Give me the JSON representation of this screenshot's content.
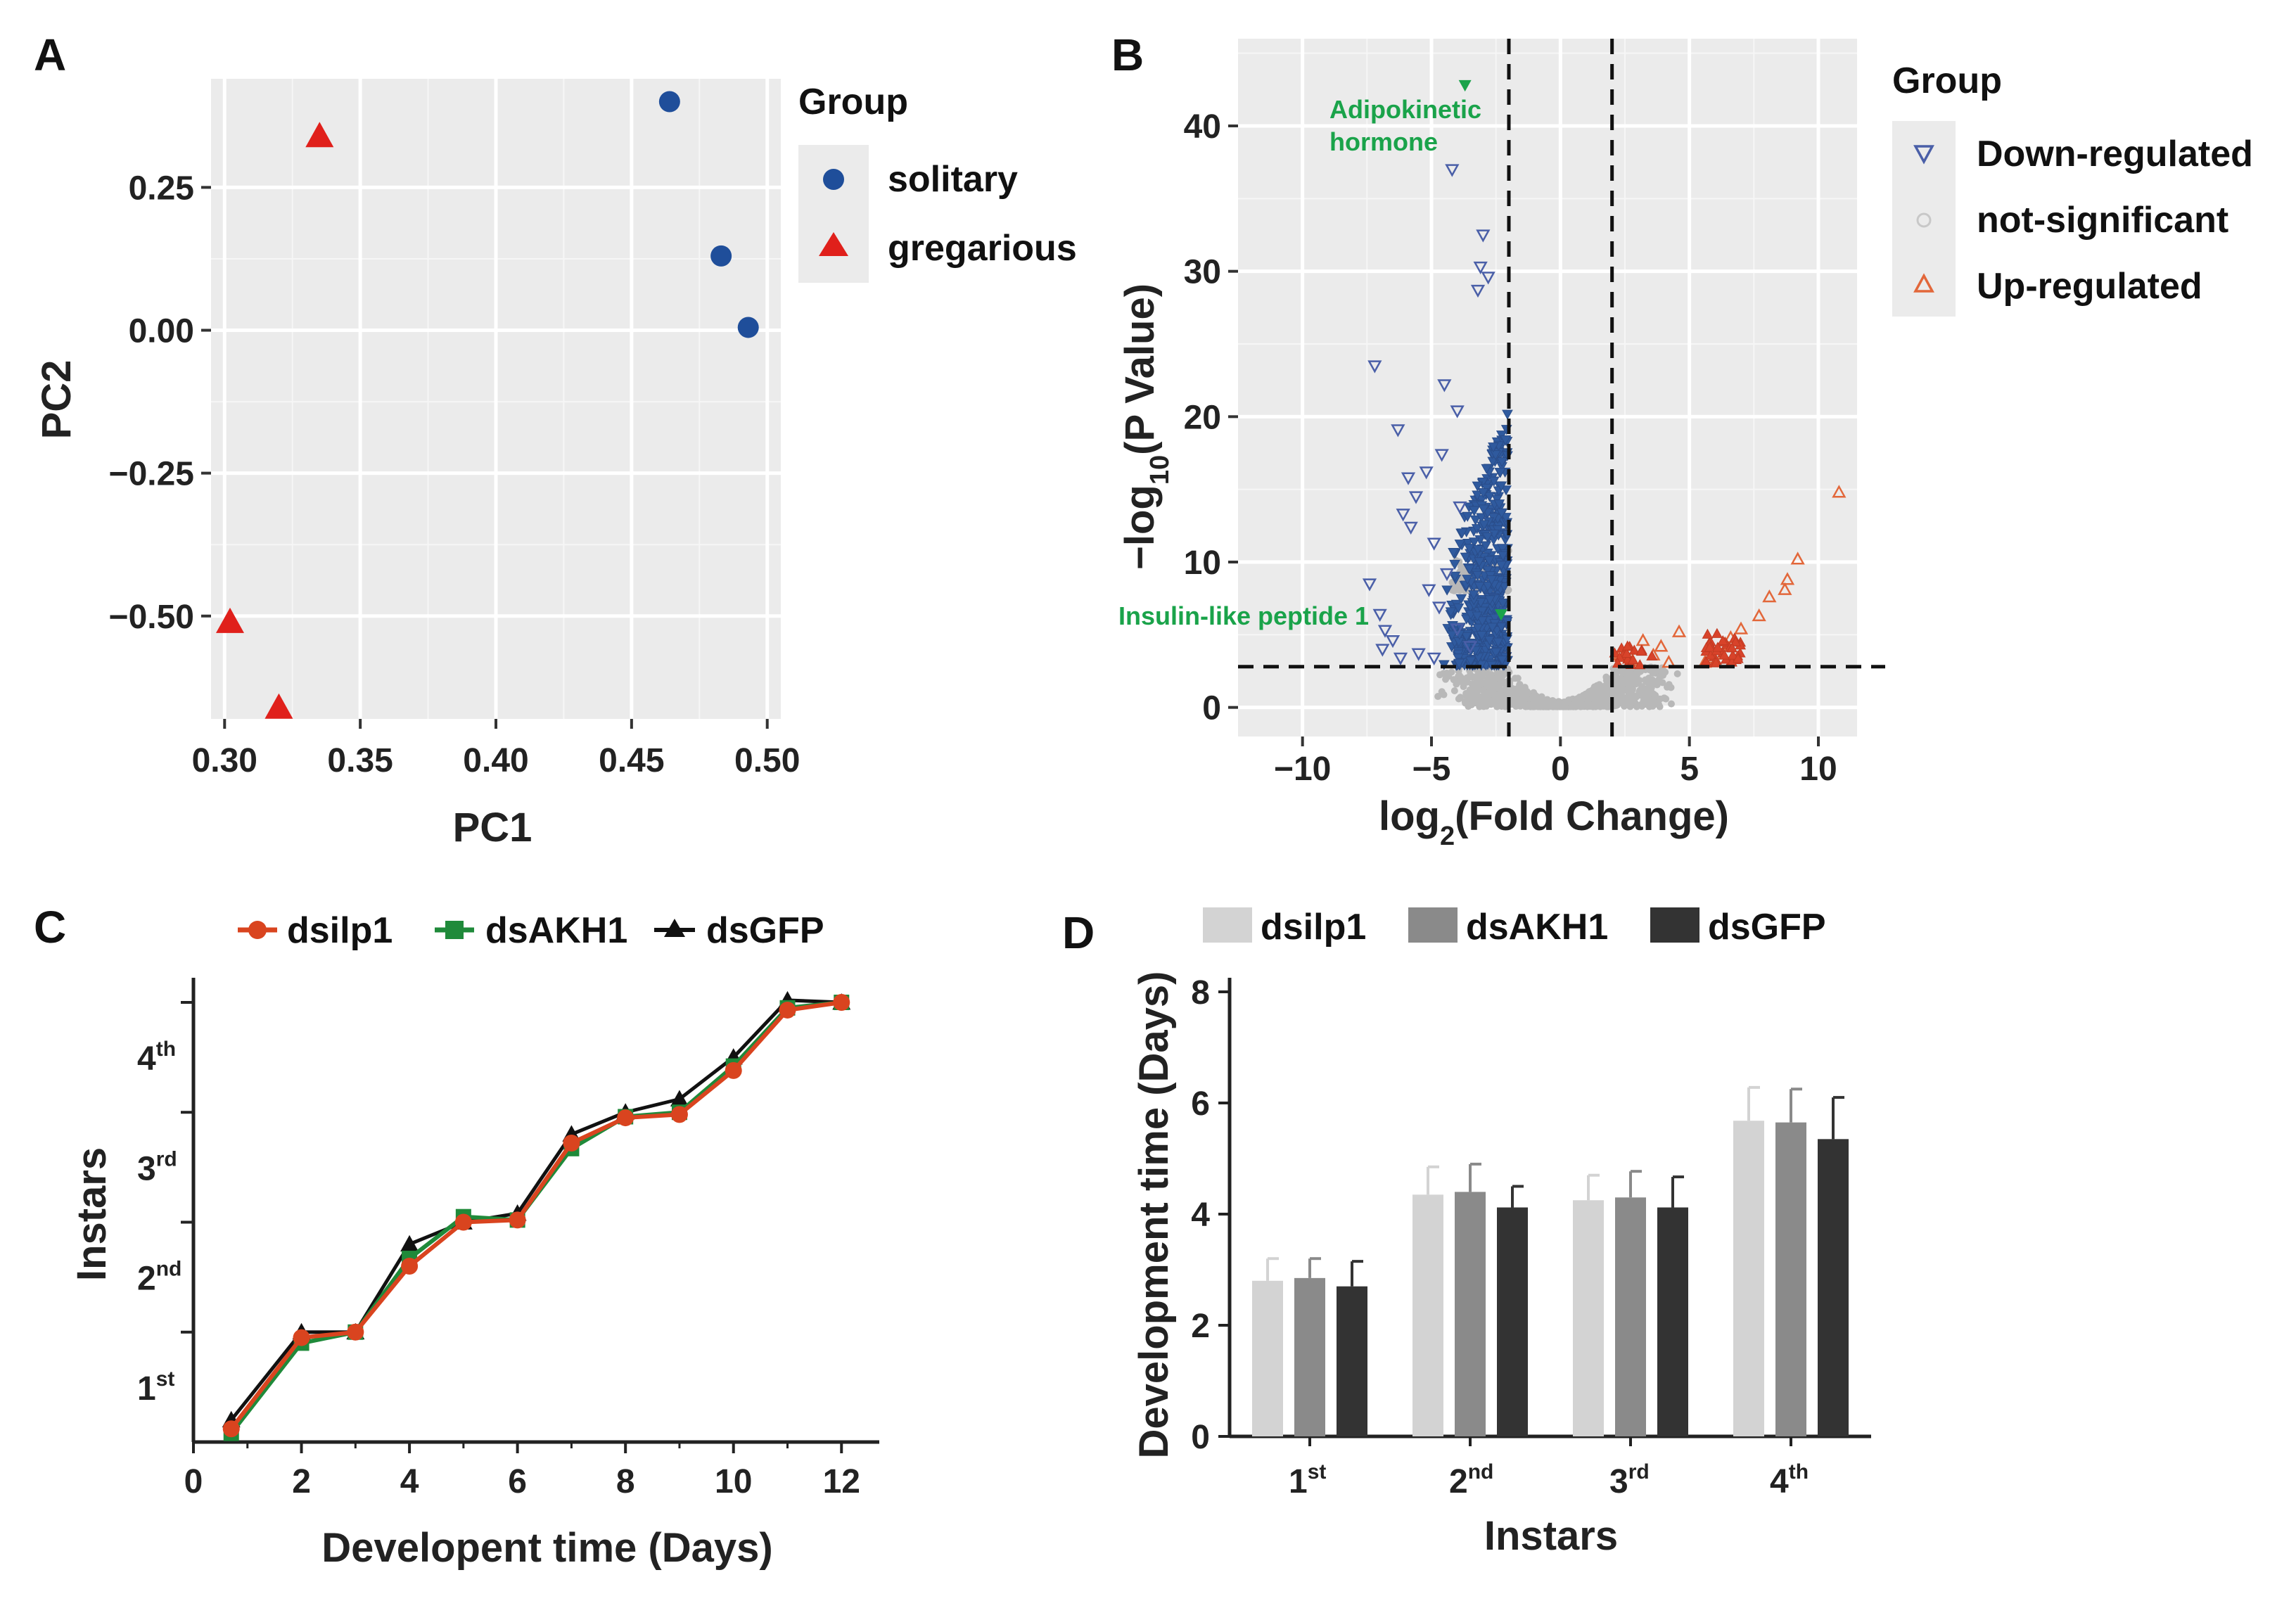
{
  "chart_data": [
    {
      "panel": "A",
      "type": "scatter",
      "xlabel": "PC1",
      "ylabel": "PC2",
      "xlim": [
        0.295,
        0.505
      ],
      "ylim": [
        -0.68,
        0.44
      ],
      "xticks": [
        "0.30",
        "0.35",
        "0.40",
        "0.45",
        "0.50"
      ],
      "xtick_values": [
        0.3,
        0.35,
        0.4,
        0.45,
        0.5
      ],
      "yticks": [
        "0.25",
        "0.00",
        "−0.25",
        "−0.50"
      ],
      "ytick_values": [
        0.25,
        0.0,
        -0.25,
        -0.5
      ],
      "legend_title": "Group",
      "series": [
        {
          "name": "solitary",
          "color": "#1f4e9a",
          "marker": "circle",
          "points": [
            [
              0.464,
              0.4
            ],
            [
              0.483,
              0.13
            ],
            [
              0.493,
              0.005
            ]
          ]
        },
        {
          "name": "gregarious",
          "color": "#e0201b",
          "marker": "triangle",
          "points": [
            [
              0.335,
              0.34
            ],
            [
              0.302,
              -0.51
            ],
            [
              0.32,
              -0.66
            ]
          ]
        }
      ]
    },
    {
      "panel": "B",
      "type": "scatter",
      "xlabel_main": "log",
      "xlabel_sub": "2",
      "xlabel_rest": "(Fold Change)",
      "ylabel_main": "−log",
      "ylabel_sub": "10",
      "ylabel_rest": "(P Value)",
      "xlim": [
        -12.5,
        11.5
      ],
      "ylim": [
        -2,
        46
      ],
      "xticks": [
        "−10",
        "−5",
        "0",
        "5",
        "10"
      ],
      "xtick_values": [
        -10,
        -5,
        0,
        5,
        10
      ],
      "yticks": [
        "0",
        "10",
        "20",
        "30",
        "40"
      ],
      "ytick_values": [
        0,
        10,
        20,
        30,
        40
      ],
      "thresholds": {
        "log2fc": [
          -2,
          2
        ],
        "neglog10p": 2.8
      },
      "legend_title": "Group",
      "legend": [
        {
          "name": "Down-regulated",
          "color": "#4a5fa8"
        },
        {
          "name": "not-significant",
          "color": "#bbbbbb"
        },
        {
          "name": "Up-regulated",
          "color": "#e2673a"
        }
      ],
      "annotations": [
        {
          "text1": "Adipokinetic",
          "text2": "hormone",
          "x": -3.7,
          "y": 43
        },
        {
          "text1": "Insulin-like peptide 1",
          "text2": "",
          "x": -2.3,
          "y": 6.8
        }
      ],
      "down_points": [
        [
          -7.2,
          23.5
        ],
        [
          -6.3,
          19.1
        ],
        [
          -5.9,
          15.8
        ],
        [
          -5.6,
          14.5
        ],
        [
          -6.1,
          13.3
        ],
        [
          -5.8,
          12.4
        ],
        [
          -7.4,
          8.5
        ],
        [
          -7.0,
          6.4
        ],
        [
          -6.8,
          5.3
        ],
        [
          -6.5,
          4.6
        ],
        [
          -6.9,
          4.0
        ],
        [
          -6.2,
          3.4
        ],
        [
          -5.5,
          3.7
        ],
        [
          -4.2,
          37.0
        ],
        [
          -3.0,
          32.5
        ],
        [
          -3.1,
          30.3
        ],
        [
          -2.8,
          29.6
        ],
        [
          -3.2,
          28.7
        ],
        [
          -4.5,
          22.2
        ],
        [
          -4.0,
          20.4
        ],
        [
          -4.6,
          17.4
        ],
        [
          -5.2,
          16.2
        ],
        [
          -3.9,
          13.8
        ],
        [
          -4.9,
          11.3
        ],
        [
          -4.4,
          9.2
        ],
        [
          -5.1,
          8.1
        ],
        [
          -4.7,
          6.9
        ],
        [
          -4.0,
          5.4
        ],
        [
          -3.5,
          4.2
        ],
        [
          -4.9,
          3.4
        ]
      ],
      "up_points": [
        [
          10.8,
          14.8
        ],
        [
          9.2,
          10.2
        ],
        [
          8.8,
          8.8
        ],
        [
          8.7,
          8.1
        ],
        [
          8.1,
          7.6
        ],
        [
          7.7,
          6.3
        ],
        [
          7.0,
          5.4
        ],
        [
          6.6,
          4.8
        ],
        [
          6.3,
          4.3
        ],
        [
          6.0,
          3.7
        ],
        [
          5.8,
          3.4
        ],
        [
          5.6,
          3.1
        ],
        [
          4.6,
          5.2
        ],
        [
          3.9,
          4.2
        ],
        [
          3.6,
          3.6
        ],
        [
          3.2,
          4.6
        ],
        [
          2.7,
          4.0
        ],
        [
          2.3,
          3.6
        ],
        [
          2.8,
          3.2
        ],
        [
          4.2,
          3.1
        ]
      ],
      "highlight_points": [
        [
          -3.7,
          42.8
        ],
        [
          -2.3,
          6.4
        ]
      ]
    },
    {
      "panel": "C",
      "type": "line",
      "xlabel": "Developent time (Days)",
      "ylabel": "Instars",
      "xlim": [
        0,
        12.7
      ],
      "ylim": [
        0,
        4
      ],
      "xticks": [
        "0",
        "2",
        "4",
        "6",
        "8",
        "10",
        "12"
      ],
      "xtick_values": [
        0,
        2,
        4,
        6,
        8,
        10,
        12
      ],
      "ytick_values": [
        1,
        2,
        3,
        4
      ],
      "yticks": [
        {
          "base": "1",
          "sup": "st"
        },
        {
          "base": "2",
          "sup": "nd"
        },
        {
          "base": "3",
          "sup": "rd"
        },
        {
          "base": "4",
          "sup": "th"
        }
      ],
      "x": [
        0.7,
        2,
        3,
        4,
        5,
        6,
        7,
        8,
        9,
        10,
        11,
        12
      ],
      "series": [
        {
          "name": "dsilp1",
          "color": "#d9441f",
          "marker": "circle",
          "values": [
            0.12,
            0.95,
            1.0,
            1.6,
            2.0,
            2.02,
            2.72,
            2.95,
            2.98,
            3.38,
            3.93,
            4.0
          ]
        },
        {
          "name": "dsAKH1",
          "color": "#1f8a3a",
          "marker": "square",
          "values": [
            0.08,
            0.9,
            1.0,
            1.67,
            2.05,
            2.02,
            2.67,
            2.96,
            3.0,
            3.42,
            3.95,
            4.0
          ]
        },
        {
          "name": "dsGFP",
          "color": "#111111",
          "marker": "triangle",
          "values": [
            0.2,
            1.0,
            1.0,
            1.8,
            2.0,
            2.08,
            2.8,
            3.0,
            3.12,
            3.5,
            4.02,
            4.0
          ]
        }
      ]
    },
    {
      "panel": "D",
      "type": "bar",
      "xlabel": "Instars",
      "ylabel": "Development time (Days)",
      "ylim": [
        0,
        8
      ],
      "yticks": [
        "0",
        "2",
        "4",
        "6",
        "8"
      ],
      "ytick_values": [
        0,
        2,
        4,
        6,
        8
      ],
      "categories": [
        {
          "base": "1",
          "sup": "st"
        },
        {
          "base": "2",
          "sup": "nd"
        },
        {
          "base": "3",
          "sup": "rd"
        },
        {
          "base": "4",
          "sup": "th"
        }
      ],
      "series": [
        {
          "name": "dsilp1",
          "color": "#d3d3d3",
          "values": [
            2.8,
            4.35,
            4.25,
            5.68
          ],
          "errors": [
            0.4,
            0.5,
            0.45,
            0.6
          ]
        },
        {
          "name": "dsAKH1",
          "color": "#8a8a8a",
          "values": [
            2.85,
            4.4,
            4.3,
            5.65
          ],
          "errors": [
            0.35,
            0.5,
            0.47,
            0.6
          ]
        },
        {
          "name": "dsGFP",
          "color": "#333333",
          "values": [
            2.7,
            4.12,
            4.12,
            5.35
          ],
          "errors": [
            0.45,
            0.38,
            0.55,
            0.75
          ]
        }
      ]
    }
  ],
  "panel_labels": {
    "a": "A",
    "b": "B",
    "c": "C",
    "d": "D"
  }
}
